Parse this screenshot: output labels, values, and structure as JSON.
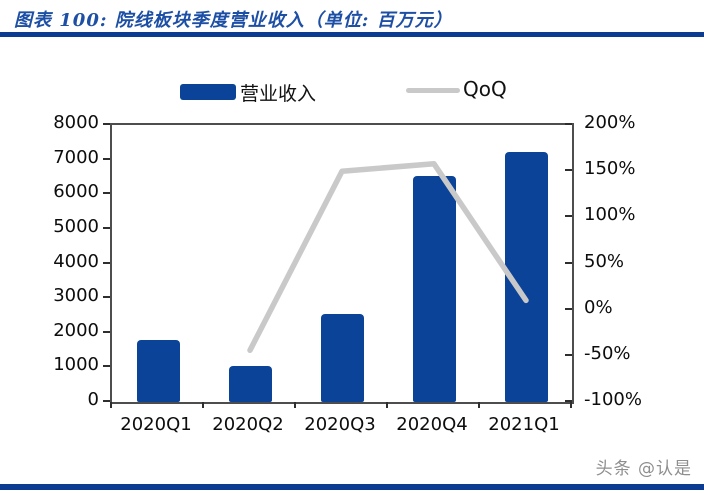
{
  "header": {
    "title": "图表 100:  院线板块季度营业收入（单位:  百万元）"
  },
  "legend": {
    "bar_label": "营业收入",
    "line_label": "QoQ"
  },
  "watermark": "头条 @认是",
  "colors": {
    "bar": "#0a4397",
    "line": "#c9c9c9",
    "rule": "#0c3c91",
    "title": "#1d4fa5",
    "axis_frame": "#4d4d4d",
    "tick": "#2e2e2e",
    "watermark": "#8f8f8f"
  },
  "chart_data": {
    "type": "bar",
    "title": "院线板块季度营业收入（单位: 百万元）",
    "categories": [
      "2020Q1",
      "2020Q2",
      "2020Q3",
      "2020Q4",
      "2021Q1"
    ],
    "series": [
      {
        "name": "营业收入",
        "type": "bar",
        "axis": "left",
        "values": [
          1790,
          1030,
          2530,
          6520,
          7230
        ]
      },
      {
        "name": "QoQ",
        "type": "line",
        "axis": "right",
        "values": [
          null,
          -44,
          150,
          158,
          10
        ]
      }
    ],
    "left_axis": {
      "min": 0,
      "max": 8000,
      "step": 1000,
      "ticks": [
        "8000",
        "7000",
        "6000",
        "5000",
        "4000",
        "3000",
        "2000",
        "1000",
        "0"
      ]
    },
    "right_axis": {
      "min": -100,
      "max": 200,
      "step": 50,
      "ticks": [
        "200%",
        "150%",
        "100%",
        "50%",
        "0%",
        "-50%",
        "-100%"
      ]
    },
    "grid": false,
    "legend_position": "top"
  }
}
